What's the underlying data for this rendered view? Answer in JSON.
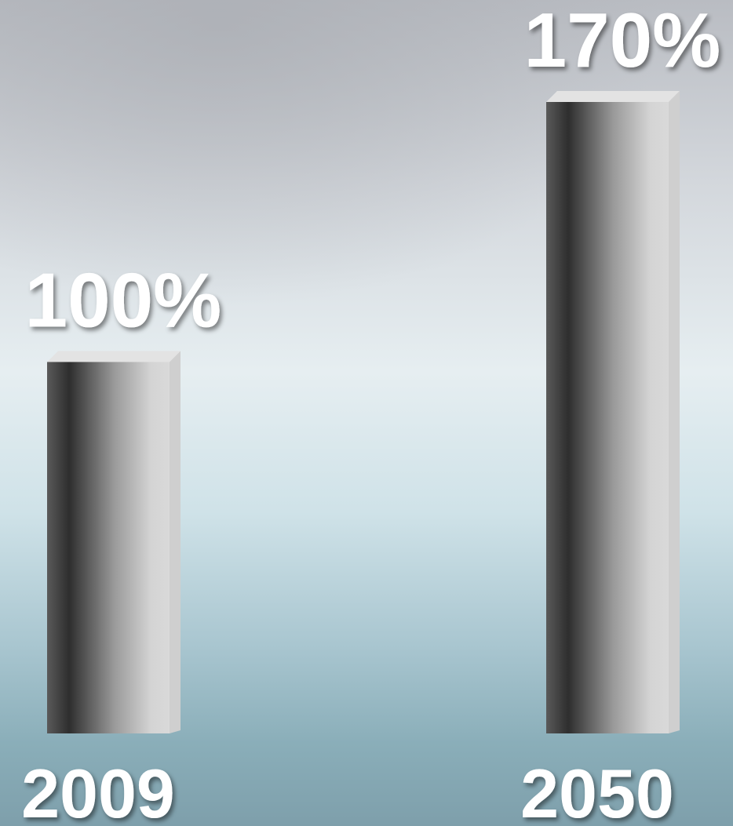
{
  "chart_data": {
    "type": "bar",
    "categories": [
      "2009",
      "2050"
    ],
    "values": [
      100,
      170
    ],
    "value_labels": [
      "100%",
      "170%"
    ]
  }
}
